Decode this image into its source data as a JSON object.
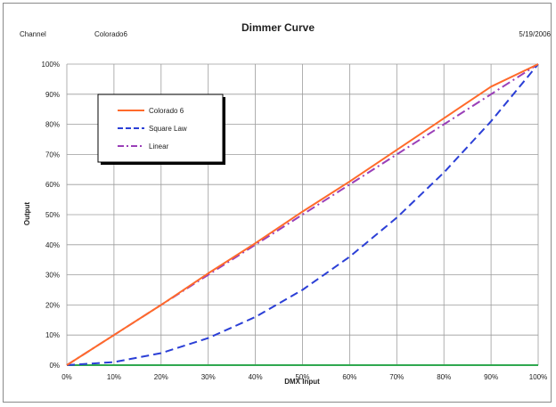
{
  "header": {
    "channel_label": "Channel",
    "channel_value": "Colorado6",
    "date": "5/19/2006"
  },
  "chart_data": {
    "type": "line",
    "title": "Dimmer Curve",
    "xlabel": "DMX Input",
    "ylabel": "Output",
    "xlim": [
      0,
      100
    ],
    "ylim": [
      0,
      100
    ],
    "x_ticks": [
      "0%",
      "10%",
      "20%",
      "30%",
      "40%",
      "50%",
      "60%",
      "70%",
      "80%",
      "90%",
      "100%"
    ],
    "y_ticks": [
      "0%",
      "10%",
      "20%",
      "30%",
      "40%",
      "50%",
      "60%",
      "70%",
      "80%",
      "90%",
      "100%"
    ],
    "grid": true,
    "legend_position": "top-left",
    "x": [
      0,
      10,
      20,
      30,
      40,
      50,
      60,
      70,
      80,
      90,
      100
    ],
    "series": [
      {
        "name": "Colorado 6",
        "color": "#ff6a2b",
        "dash": "solid",
        "values": [
          0,
          10,
          20,
          30.5,
          40.5,
          51,
          61,
          71.5,
          82,
          92.5,
          100
        ]
      },
      {
        "name": "Square Law",
        "color": "#2b3fd6",
        "dash": "dash",
        "values": [
          0,
          1,
          4,
          9,
          16,
          25,
          36,
          49,
          64,
          81,
          100
        ]
      },
      {
        "name": "Linear",
        "color": "#9a3fb8",
        "dash": "dashdot",
        "values": [
          0,
          10,
          20,
          30,
          40,
          50,
          60,
          70,
          80,
          90,
          100
        ]
      },
      {
        "color": "#2fa84f",
        "dash": "solid",
        "values": [
          0,
          0,
          0,
          0,
          0,
          0,
          0,
          0,
          0,
          0,
          0
        ]
      }
    ]
  }
}
